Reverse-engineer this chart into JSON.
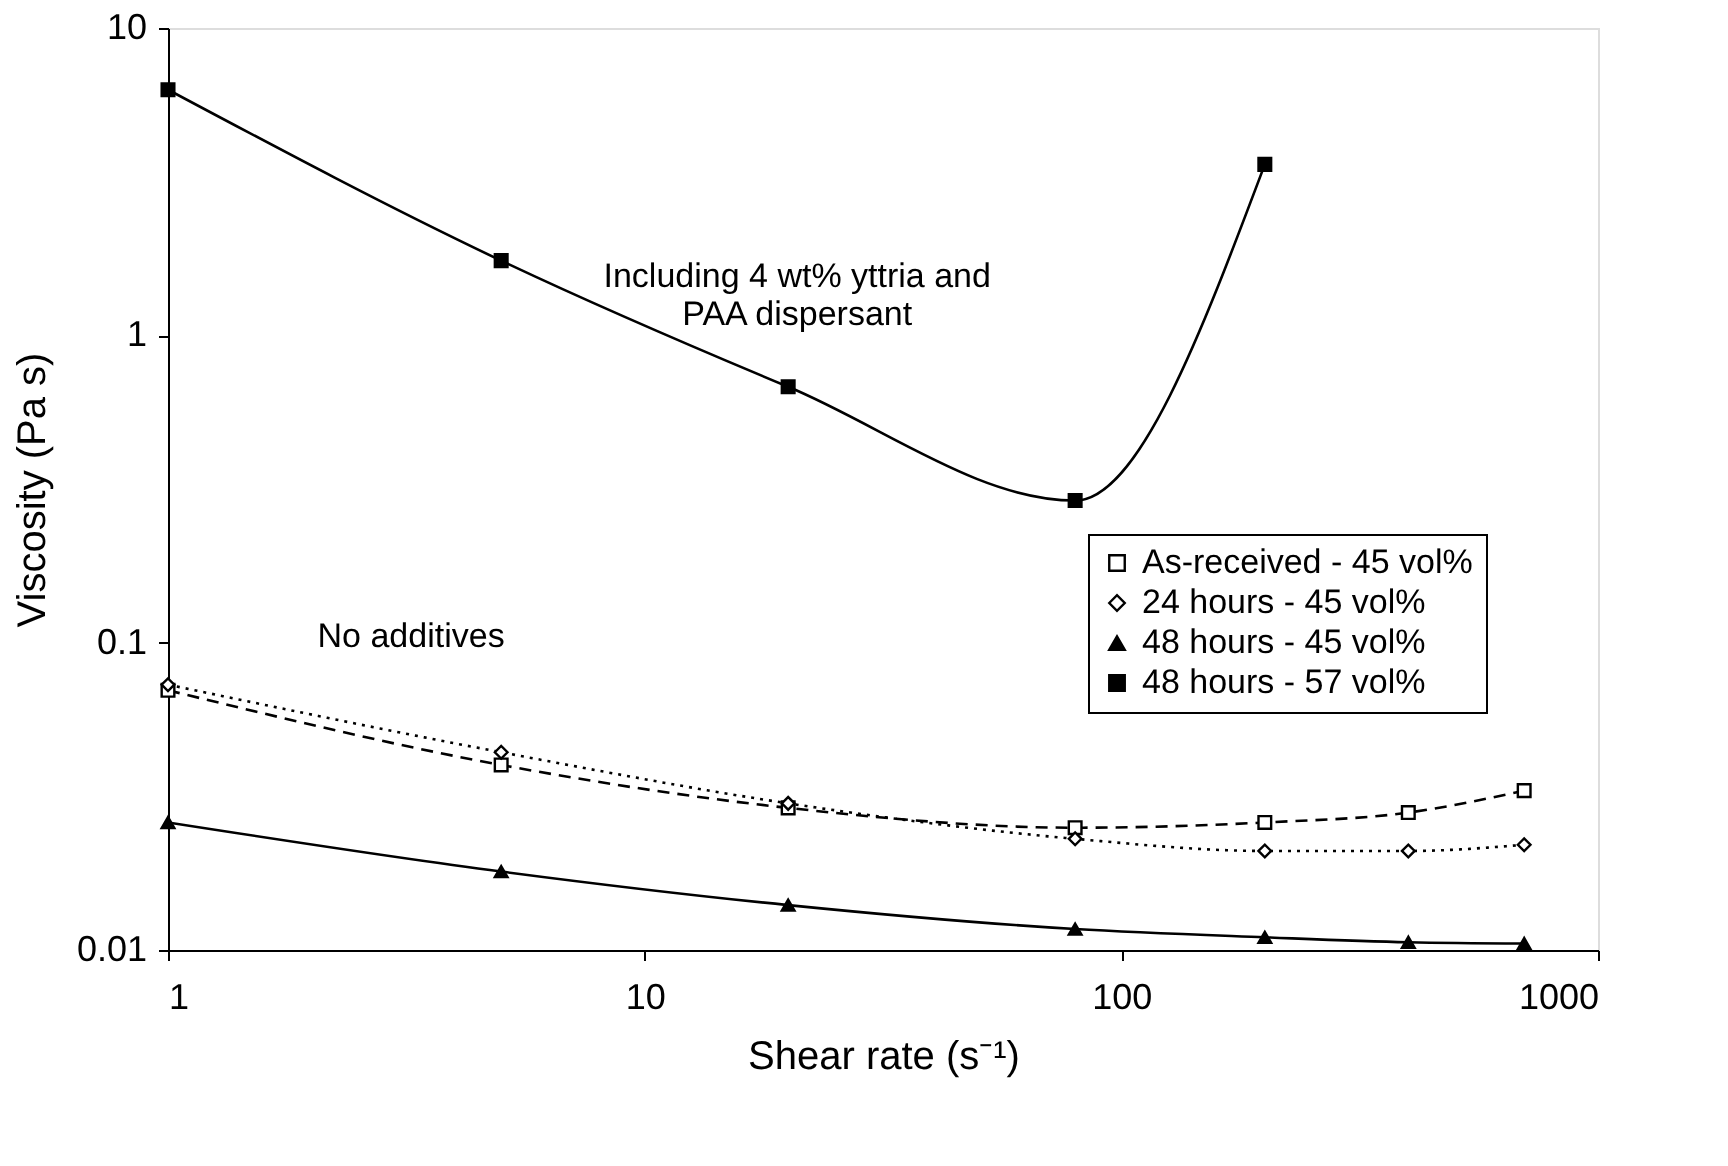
{
  "chart_data": {
    "type": "line",
    "xlabel": "Shear rate (s⁻¹)",
    "ylabel": "Viscosity (Pa s)",
    "log": "xy",
    "grid": false,
    "legend": "right",
    "xlim": [
      1,
      1000
    ],
    "xticks": [
      1,
      10,
      100,
      1000
    ],
    "ylim": [
      0.01,
      10
    ],
    "yticks": [
      0.01,
      0.1,
      1,
      10
    ],
    "annotations": [
      "Including 4 wt% yttria and\nPAA dispersant",
      "No additives"
    ],
    "series": [
      {
        "name": "As-received - 45 vol%",
        "color": "#000000",
        "marker": "square",
        "line_style": "dashed",
        "x": [
          1,
          5,
          20,
          80,
          200,
          400,
          700
        ],
        "values": [
          0.07,
          0.04,
          0.029,
          0.025,
          0.026,
          0.028,
          0.033
        ]
      },
      {
        "name": "24 hours - 45 vol%",
        "color": "#000000",
        "marker": "diamond",
        "line_style": "dotted",
        "x": [
          1,
          5,
          20,
          80,
          200,
          400,
          700
        ],
        "values": [
          0.073,
          0.044,
          0.03,
          0.023,
          0.021,
          0.021,
          0.022
        ]
      },
      {
        "name": "48 hours - 45 vol%",
        "color": "#000000",
        "marker": "triangle",
        "line_style": "solid",
        "x": [
          1,
          5,
          20,
          80,
          200,
          400,
          700
        ],
        "values": [
          0.026,
          0.018,
          0.014,
          0.0117,
          0.011,
          0.0106,
          0.0105
        ]
      },
      {
        "name": "48 hours - 57 vol%",
        "color": "#000000",
        "marker": "square",
        "line_style": "solid",
        "x": [
          1,
          5,
          20,
          80,
          200
        ],
        "values": [
          6.3,
          1.75,
          0.68,
          0.29,
          3.6
        ]
      }
    ]
  }
}
